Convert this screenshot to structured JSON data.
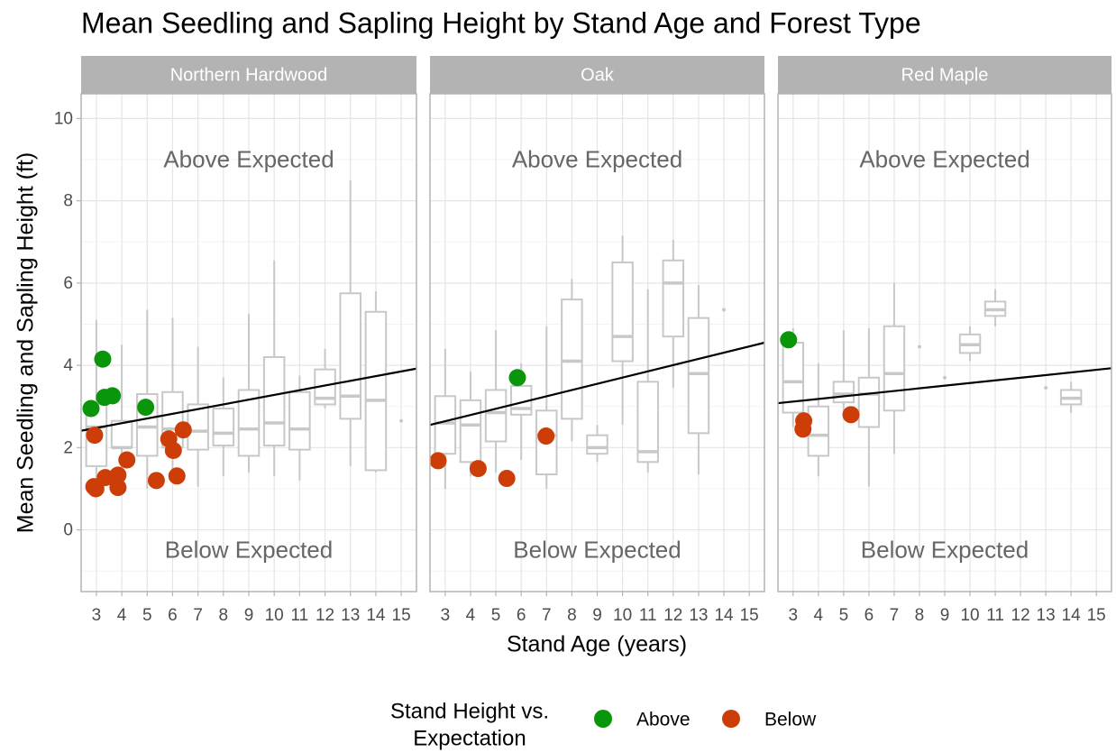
{
  "title": "Mean Seedling and Sapling Height by Stand Age and Forest Type",
  "x_label": "Stand Age (years)",
  "y_label": "Mean Seedling and Sapling Height (ft)",
  "legend_title": [
    "Stand Height vs.",
    "Expectation"
  ],
  "chart_data": [
    {
      "type": "box",
      "title": "Northern Hardwood",
      "xlim": [
        2.4,
        15.6
      ],
      "xticks": [
        3,
        4,
        5,
        6,
        7,
        8,
        9,
        10,
        11,
        12,
        13,
        14,
        15
      ],
      "ylim": [
        -1.5,
        10.6
      ],
      "yticks": [
        0,
        2,
        4,
        6,
        8,
        10
      ],
      "y_minor_ticks": [
        -1,
        1,
        3,
        5,
        7,
        9
      ],
      "grid": true,
      "annotations": [
        "Above Expected",
        "Below Expected"
      ],
      "boxes": {
        "x": [
          3,
          4,
          5,
          6,
          7,
          8,
          9,
          10,
          11,
          12,
          13,
          14,
          15
        ],
        "min": [
          1.0,
          1.0,
          1.0,
          1.2,
          1.05,
          1.3,
          1.4,
          1.3,
          1.2,
          2.95,
          1.55,
          1.4,
          2.65
        ],
        "q1": [
          1.55,
          2.0,
          1.8,
          2.0,
          1.95,
          2.05,
          1.8,
          2.05,
          1.95,
          3.05,
          2.7,
          1.45,
          2.65
        ],
        "median": [
          2.5,
          2.0,
          2.5,
          2.45,
          2.4,
          2.35,
          2.45,
          2.6,
          2.45,
          3.2,
          3.25,
          3.15,
          2.65
        ],
        "q3": [
          3.05,
          2.65,
          3.3,
          3.35,
          3.05,
          2.95,
          3.4,
          4.2,
          3.35,
          3.9,
          5.75,
          5.3,
          2.65
        ],
        "max": [
          5.1,
          4.5,
          5.35,
          5.15,
          4.45,
          3.7,
          5.25,
          6.55,
          3.75,
          4.4,
          8.5,
          5.8,
          2.65
        ]
      },
      "trend": {
        "x": [
          2.4,
          15.6
        ],
        "values": [
          2.41,
          3.92
        ]
      },
      "series": [
        {
          "name": "Above",
          "color": "#0a960a",
          "x": [
            2.79,
            3.25,
            3.32,
            3.63,
            4.94
          ],
          "values": [
            2.95,
            4.15,
            3.22,
            3.26,
            2.98
          ]
        },
        {
          "name": "Below",
          "color": "#cc3d08",
          "x": [
            2.93,
            2.9,
            2.98,
            3.35,
            3.85,
            3.85,
            4.2,
            5.36,
            5.85,
            6.03,
            6.17,
            6.42
          ],
          "values": [
            2.3,
            1.05,
            1.0,
            1.27,
            1.33,
            1.03,
            1.7,
            1.2,
            2.21,
            1.93,
            1.31,
            2.43
          ]
        }
      ]
    },
    {
      "type": "box",
      "title": "Oak",
      "xlim": [
        2.4,
        15.6
      ],
      "xticks": [
        3,
        4,
        5,
        6,
        7,
        8,
        9,
        10,
        11,
        12,
        13,
        14,
        15
      ],
      "ylim": [
        -1.5,
        10.6
      ],
      "yticks": [
        0,
        2,
        4,
        6,
        8,
        10
      ],
      "y_minor_ticks": [
        -1,
        1,
        3,
        5,
        7,
        9
      ],
      "grid": true,
      "annotations": [
        "Above Expected",
        "Below Expected"
      ],
      "boxes": {
        "x": [
          3,
          4,
          5,
          6,
          7,
          8,
          9,
          10,
          11,
          12,
          13,
          14
        ],
        "min": [
          1.0,
          1.3,
          1.4,
          1.7,
          1.0,
          2.15,
          1.65,
          2.55,
          1.4,
          3.45,
          1.35,
          5.35
        ],
        "q1": [
          1.85,
          1.65,
          2.15,
          2.8,
          1.35,
          2.7,
          1.85,
          4.1,
          1.65,
          4.7,
          2.35,
          5.35
        ],
        "median": [
          2.6,
          2.55,
          2.85,
          2.95,
          2.3,
          4.1,
          2.0,
          4.7,
          1.9,
          6.0,
          3.8,
          5.35
        ],
        "q3": [
          3.25,
          3.15,
          3.4,
          3.5,
          2.9,
          5.6,
          2.3,
          6.5,
          3.6,
          6.55,
          5.15,
          5.35
        ],
        "max": [
          4.4,
          3.85,
          4.85,
          4.05,
          4.95,
          6.1,
          2.55,
          7.15,
          5.85,
          7.05,
          5.95,
          5.35
        ]
      },
      "trend": {
        "x": [
          2.4,
          15.6
        ],
        "values": [
          2.55,
          4.55
        ]
      },
      "series": [
        {
          "name": "Above",
          "color": "#0a960a",
          "x": [
            5.85
          ],
          "values": [
            3.7
          ]
        },
        {
          "name": "Below",
          "color": "#cc3d08",
          "x": [
            2.72,
            4.3,
            5.43,
            6.98
          ],
          "values": [
            1.68,
            1.49,
            1.25,
            2.28
          ]
        }
      ]
    },
    {
      "type": "box",
      "title": "Red Maple",
      "xlim": [
        2.4,
        15.6
      ],
      "xticks": [
        3,
        4,
        5,
        6,
        7,
        8,
        9,
        10,
        11,
        12,
        13,
        14,
        15
      ],
      "ylim": [
        -1.5,
        10.6
      ],
      "yticks": [
        0,
        2,
        4,
        6,
        8,
        10
      ],
      "y_minor_ticks": [
        -1,
        1,
        3,
        5,
        7,
        9
      ],
      "grid": true,
      "annotations": [
        "Above Expected",
        "Below Expected"
      ],
      "boxes": {
        "x": [
          3,
          4,
          5,
          6,
          7,
          8,
          9,
          10,
          11,
          13,
          14
        ],
        "min": [
          2.5,
          1.3,
          2.85,
          1.05,
          1.85,
          4.45,
          3.7,
          4.1,
          4.95,
          3.45,
          2.85
        ],
        "q1": [
          2.85,
          1.8,
          3.1,
          2.5,
          2.9,
          4.45,
          3.7,
          4.3,
          5.2,
          3.45,
          3.05
        ],
        "median": [
          3.6,
          2.3,
          3.3,
          3.3,
          3.8,
          4.45,
          3.7,
          4.5,
          5.35,
          3.45,
          3.2
        ],
        "q3": [
          4.55,
          3.0,
          3.6,
          3.7,
          4.95,
          4.45,
          3.7,
          4.75,
          5.55,
          3.45,
          3.4
        ],
        "max": [
          4.9,
          4.05,
          4.85,
          4.9,
          6.0,
          4.45,
          3.7,
          4.95,
          5.85,
          3.45,
          3.6
        ]
      },
      "trend": {
        "x": [
          2.4,
          15.6
        ],
        "values": [
          3.08,
          3.93
        ]
      },
      "series": [
        {
          "name": "Above",
          "color": "#0a960a",
          "x": [
            2.82
          ],
          "values": [
            4.62
          ]
        },
        {
          "name": "Below",
          "color": "#cc3d08",
          "x": [
            3.42,
            3.39,
            5.29
          ],
          "values": [
            2.65,
            2.45,
            2.8
          ]
        }
      ]
    }
  ]
}
